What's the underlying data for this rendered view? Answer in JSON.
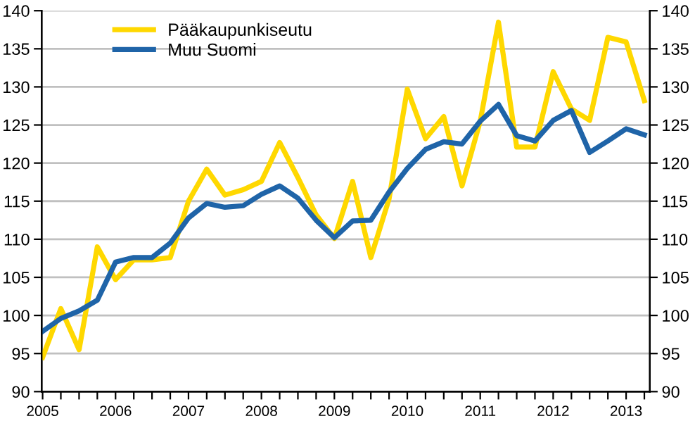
{
  "chart_data": {
    "type": "line",
    "categories": [
      "2005",
      null,
      null,
      null,
      "2006",
      null,
      null,
      null,
      "2007",
      null,
      null,
      null,
      "2008",
      null,
      null,
      null,
      "2009",
      null,
      null,
      null,
      "2010",
      null,
      null,
      null,
      "2011",
      null,
      null,
      null,
      "2012",
      null,
      null,
      null,
      "2013",
      null
    ],
    "series": [
      {
        "name": "Pääkaupunkiseutu",
        "color": "#ffd800",
        "values": [
          94.5,
          100.9,
          95.5,
          109.0,
          104.7,
          107.3,
          107.3,
          107.6,
          115.0,
          119.2,
          115.8,
          116.5,
          117.6,
          122.7,
          118.1,
          113.2,
          110.1,
          117.6,
          107.6,
          115.3,
          129.7,
          123.2,
          126.1,
          117.0,
          125.5,
          138.5,
          122.1,
          122.1,
          132.0,
          127.1,
          125.6,
          136.5,
          135.9,
          128.2
        ]
      },
      {
        "name": "Muu Suomi",
        "color": "#1f64a8",
        "values": [
          97.9,
          99.6,
          100.6,
          102.0,
          107.0,
          107.6,
          107.6,
          109.5,
          112.8,
          114.7,
          114.2,
          114.4,
          115.9,
          117.0,
          115.4,
          112.5,
          110.2,
          112.4,
          112.5,
          116.2,
          119.3,
          121.8,
          122.8,
          122.5,
          125.5,
          127.7,
          123.6,
          122.9,
          125.6,
          126.9,
          121.4,
          122.9,
          124.5,
          123.7
        ]
      }
    ],
    "ylim": [
      90,
      140
    ],
    "yticks": [
      90,
      95,
      100,
      105,
      110,
      115,
      120,
      125,
      130,
      135,
      140
    ],
    "y2lim": [
      90,
      140
    ],
    "y2ticks": [
      90,
      95,
      100,
      105,
      110,
      115,
      120,
      125,
      130,
      135,
      140
    ],
    "grid": "y",
    "legend": "top left",
    "marker": "none",
    "line_style": "solid"
  }
}
